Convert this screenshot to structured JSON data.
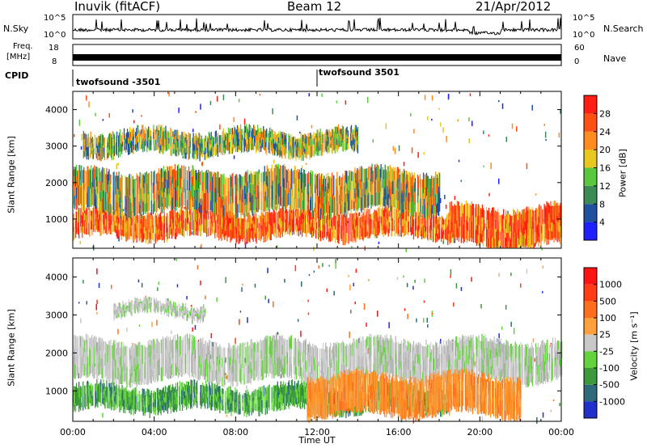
{
  "header": {
    "station": "Inuvik (fitACF)",
    "beam": "Beam 12",
    "date": "21/Apr/2012"
  },
  "strips": {
    "nsky": {
      "label": "N.Sky",
      "tick_top": "10^5",
      "tick_bottom": "10^0",
      "right_label": "N.Search",
      "right_tick_top": "10^5",
      "right_tick_bottom": "10^0"
    },
    "freq": {
      "label_line1": "Freq.",
      "label_line2": "[MHz]",
      "tick_top": "18",
      "tick_bottom": "8",
      "right_label": "Nave",
      "right_tick_top": "60",
      "right_tick_bottom": "0"
    },
    "cpid": {
      "label": "CPID",
      "segments": [
        {
          "time_hours": 0.0,
          "text": "twofsound -3501"
        },
        {
          "time_hours": 12.0,
          "text": "twofsound 3501"
        }
      ]
    }
  },
  "chart_data": [
    {
      "type": "heatmap",
      "name": "power",
      "ylabel": "Slant Range [km]",
      "xlim": [
        0,
        24
      ],
      "ylim": [
        200,
        4500
      ],
      "yticks": [
        1000,
        2000,
        3000,
        4000
      ],
      "colorbar": {
        "label": "Power [dB]",
        "ticks": [
          "4",
          "8",
          "12",
          "16",
          "20",
          "24",
          "28"
        ],
        "colors": [
          "#2020ff",
          "#2050a0",
          "#3c8a55",
          "#5ac83c",
          "#e8c81e",
          "#ff8c1e",
          "#ff5014",
          "#ff1e14"
        ]
      },
      "bands": [
        {
          "t_start": 0.0,
          "t_end": 18.5,
          "range_low": 500,
          "range_high": 1200,
          "level": "high"
        },
        {
          "t_start": 0.0,
          "t_end": 18.0,
          "range_low": 1200,
          "range_high": 2300,
          "level": "mid"
        },
        {
          "t_start": 18.5,
          "t_end": 24.0,
          "range_low": 300,
          "range_high": 1300,
          "level": "high"
        },
        {
          "t_start": 0.5,
          "t_end": 14.0,
          "range_low": 2800,
          "range_high": 3400,
          "level": "low"
        }
      ]
    },
    {
      "type": "heatmap",
      "name": "velocity",
      "ylabel": "Slant Range [km]",
      "xlim": [
        0,
        24
      ],
      "ylim": [
        200,
        4500
      ],
      "yticks": [
        1000,
        2000,
        3000,
        4000
      ],
      "xlabel": "Time UT",
      "xticks": [
        "00:00",
        "04:00",
        "08:00",
        "12:00",
        "16:00",
        "20:00",
        "00:00"
      ],
      "colorbar": {
        "label": "Velocity [m s⁻¹]",
        "ticks": [
          "1000",
          "500",
          "100",
          "25",
          "-25",
          "-100",
          "-500",
          "-1000"
        ],
        "colors": [
          "#2030c8",
          "#2e6a7a",
          "#3c9a3c",
          "#64d23c",
          "#c8c8c8",
          "#ffa03c",
          "#ff6e1e",
          "#ff3c14",
          "#ff1414"
        ]
      },
      "bands": [
        {
          "t_start": 0.0,
          "t_end": 18.5,
          "range_low": 500,
          "range_high": 1100,
          "level": "green"
        },
        {
          "t_start": 0.0,
          "t_end": 24.0,
          "range_low": 1300,
          "range_high": 2300,
          "level": "grey"
        },
        {
          "t_start": 11.5,
          "t_end": 22.0,
          "range_low": 400,
          "range_high": 1400,
          "level": "orange"
        },
        {
          "t_start": 2.0,
          "t_end": 6.5,
          "range_low": 3000,
          "range_high": 3300,
          "level": "grey"
        }
      ]
    }
  ]
}
